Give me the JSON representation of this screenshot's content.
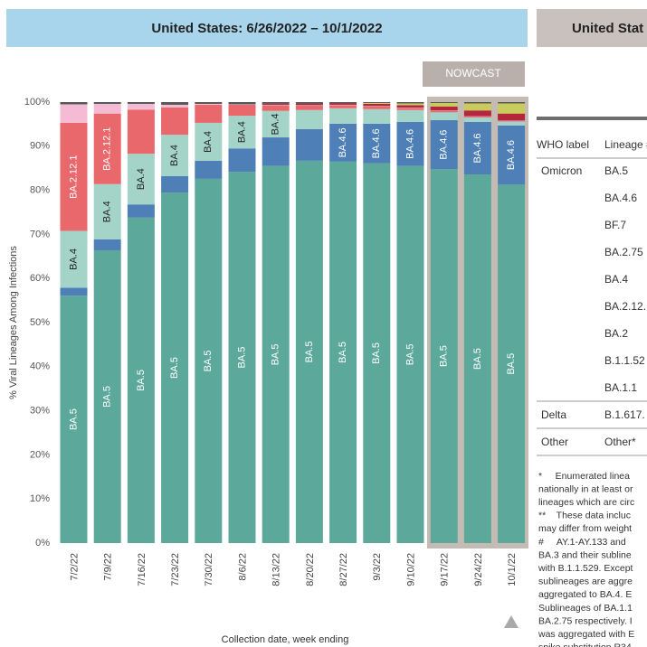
{
  "chart_data": {
    "type": "stacked_bar",
    "title": "United States: 6/26/2022 – 10/1/2022",
    "subtitle": "NOWCAST",
    "ylabel": "% Viral Lineages Among Infections",
    "xlabel": "Collection date, week ending",
    "categories": [
      "7/2/22",
      "7/9/22",
      "7/16/22",
      "7/23/22",
      "7/30/22",
      "8/6/22",
      "8/13/22",
      "8/20/22",
      "8/27/22",
      "9/3/22",
      "9/10/22",
      "9/17/22",
      "9/24/22",
      "10/1/22"
    ],
    "series": [
      {
        "name": "BA.5",
        "color": "#5ca99c",
        "values": [
          56.1,
          66.4,
          73.8,
          79.5,
          82.6,
          84.2,
          85.5,
          86.7,
          86.5,
          86.1,
          85.5,
          84.8,
          83.6,
          81.3
        ]
      },
      {
        "name": "BA.4.6",
        "color": "#4e7fb6",
        "values": [
          1.8,
          2.5,
          3.0,
          3.7,
          4.1,
          5.3,
          6.5,
          7.2,
          8.6,
          9.0,
          10.0,
          11.1,
          11.9,
          13.4
        ]
      },
      {
        "name": "BA.4",
        "color": "#a4d4c8",
        "values": [
          12.9,
          12.5,
          11.5,
          9.4,
          8.6,
          7.4,
          6.0,
          4.3,
          3.5,
          3.3,
          2.7,
          1.8,
          1.0,
          0.9
        ]
      },
      {
        "name": "BA.2.12.1",
        "color": "#e8686c",
        "values": [
          24.5,
          16.0,
          10.0,
          6.2,
          4.1,
          2.5,
          1.3,
          1.0,
          0.7,
          0.6,
          0.4,
          0.3,
          0.2,
          0.1
        ]
      },
      {
        "name": "BA.2",
        "color": "#f5bad4",
        "values": [
          4.2,
          2.2,
          1.3,
          0.6,
          0.2,
          0.1,
          0.1,
          0.1,
          0.1,
          0.1,
          0.1,
          0.1,
          0.1,
          0.1
        ]
      },
      {
        "name": "BA.2.75",
        "color": "#b3263c",
        "values": [
          0,
          0,
          0,
          0,
          0,
          0,
          0.2,
          0.3,
          0.3,
          0.5,
          0.6,
          0.9,
          1.3,
          1.6
        ]
      },
      {
        "name": "BF.7",
        "color": "#c9cc5c",
        "values": [
          0,
          0,
          0,
          0,
          0,
          0,
          0,
          0,
          0,
          0.2,
          0.4,
          0.8,
          1.6,
          2.3
        ]
      },
      {
        "name": "Other*",
        "color": "#555555",
        "values": [
          0.5,
          0.4,
          0.4,
          0.6,
          0.4,
          0.5,
          0.4,
          0.4,
          0.3,
          0.2,
          0.3,
          0.2,
          0.3,
          0.3
        ]
      }
    ],
    "ylim": [
      0,
      100
    ],
    "yticks": [
      {
        "value": 0,
        "label": "0%"
      },
      {
        "value": 10,
        "label": "10%"
      },
      {
        "value": 20,
        "label": "20%"
      },
      {
        "value": 30,
        "label": "30%"
      },
      {
        "value": 40,
        "label": "40%"
      },
      {
        "value": 50,
        "label": "50%"
      },
      {
        "value": 60,
        "label": "60%"
      },
      {
        "value": 70,
        "label": "70%"
      },
      {
        "value": 80,
        "label": "80%"
      },
      {
        "value": 90,
        "label": "90%"
      },
      {
        "value": 100,
        "label": "100%"
      }
    ],
    "grid": false
  },
  "table": {
    "header": "United Stat",
    "columns": [
      "WHO label",
      "Lineage #"
    ],
    "groups": [
      {
        "label": "Omicron",
        "lineages": [
          "BA.5",
          "BA.4.6",
          "BF.7",
          "BA.2.75",
          "BA.4",
          "BA.2.12.",
          "BA.2",
          "B.1.1.52",
          "BA.1.1"
        ]
      },
      {
        "label": "Delta",
        "lineages": [
          "B.1.617."
        ]
      },
      {
        "label": "Other",
        "lineages": [
          "Other*"
        ]
      }
    ],
    "footnotes": [
      "*     Enumerated linea",
      "nationally in at least or",
      "lineages which are circ",
      "**    These data incluc",
      "may differ from weight",
      "#     AY.1-AY.133 and",
      "BA.3 and their subline",
      "with B.1.1.529. Except",
      "sublineages are aggre",
      "aggregated to BA.4. E",
      "Sublineages of BA.1.1",
      "BA.2.75 respectively. I",
      "was aggregated with E",
      "spike substitution R34"
    ]
  }
}
